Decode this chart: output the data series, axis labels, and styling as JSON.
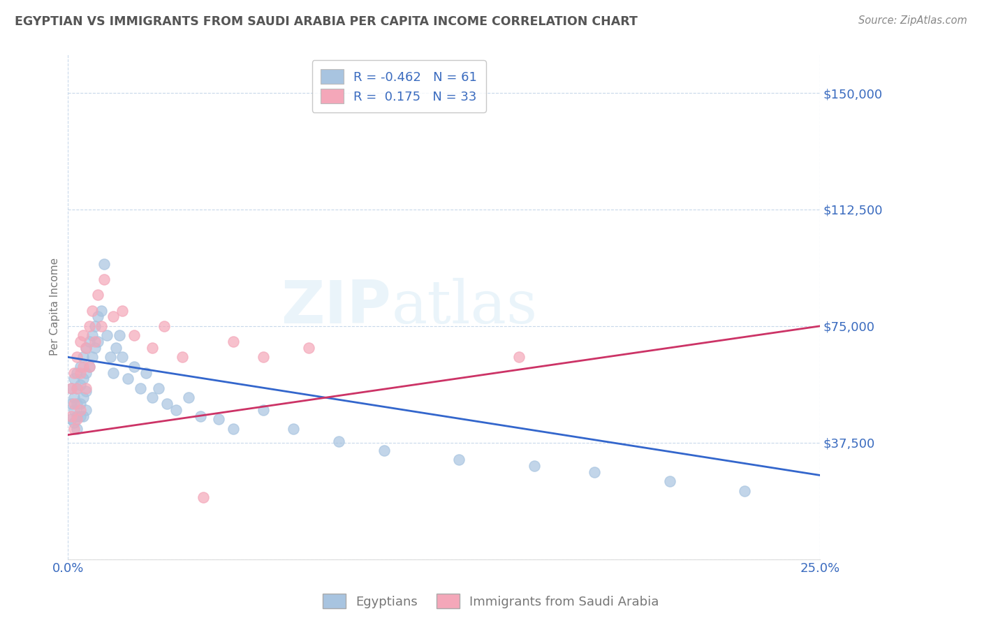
{
  "title": "EGYPTIAN VS IMMIGRANTS FROM SAUDI ARABIA PER CAPITA INCOME CORRELATION CHART",
  "source": "Source: ZipAtlas.com",
  "ylabel": "Per Capita Income",
  "xlim": [
    0.0,
    0.25
  ],
  "ylim": [
    0,
    162500
  ],
  "yticks": [
    0,
    37500,
    75000,
    112500,
    150000
  ],
  "ytick_labels": [
    "",
    "$37,500",
    "$75,000",
    "$112,500",
    "$150,000"
  ],
  "xticks": [
    0.0,
    0.25
  ],
  "xtick_labels": [
    "0.0%",
    "25.0%"
  ],
  "legend_labels": [
    "Egyptians",
    "Immigrants from Saudi Arabia"
  ],
  "series1": {
    "label": "Egyptians",
    "color": "#a8c4e0",
    "R": -0.462,
    "N": 61,
    "line_color": "#3366cc",
    "x": [
      0.001,
      0.001,
      0.001,
      0.002,
      0.002,
      0.002,
      0.002,
      0.003,
      0.003,
      0.003,
      0.003,
      0.003,
      0.004,
      0.004,
      0.004,
      0.004,
      0.005,
      0.005,
      0.005,
      0.005,
      0.006,
      0.006,
      0.006,
      0.006,
      0.007,
      0.007,
      0.008,
      0.008,
      0.009,
      0.009,
      0.01,
      0.01,
      0.011,
      0.012,
      0.013,
      0.014,
      0.015,
      0.016,
      0.017,
      0.018,
      0.02,
      0.022,
      0.024,
      0.026,
      0.028,
      0.03,
      0.033,
      0.036,
      0.04,
      0.044,
      0.05,
      0.055,
      0.065,
      0.075,
      0.09,
      0.105,
      0.13,
      0.155,
      0.175,
      0.2,
      0.225
    ],
    "y": [
      55000,
      50000,
      45000,
      58000,
      52000,
      48000,
      44000,
      60000,
      55000,
      50000,
      46000,
      42000,
      62000,
      56000,
      50000,
      46000,
      65000,
      58000,
      52000,
      46000,
      68000,
      60000,
      54000,
      48000,
      70000,
      62000,
      72000,
      65000,
      75000,
      68000,
      78000,
      70000,
      80000,
      95000,
      72000,
      65000,
      60000,
      68000,
      72000,
      65000,
      58000,
      62000,
      55000,
      60000,
      52000,
      55000,
      50000,
      48000,
      52000,
      46000,
      45000,
      42000,
      48000,
      42000,
      38000,
      35000,
      32000,
      30000,
      28000,
      25000,
      22000
    ]
  },
  "series2": {
    "label": "Immigrants from Saudi Arabia",
    "color": "#f4a7b9",
    "R": 0.175,
    "N": 33,
    "line_color": "#cc3366",
    "x": [
      0.001,
      0.001,
      0.002,
      0.002,
      0.002,
      0.003,
      0.003,
      0.003,
      0.004,
      0.004,
      0.004,
      0.005,
      0.005,
      0.006,
      0.006,
      0.007,
      0.007,
      0.008,
      0.009,
      0.01,
      0.011,
      0.012,
      0.015,
      0.018,
      0.022,
      0.028,
      0.032,
      0.038,
      0.045,
      0.055,
      0.065,
      0.08,
      0.15
    ],
    "y": [
      55000,
      46000,
      60000,
      50000,
      42000,
      65000,
      55000,
      45000,
      70000,
      60000,
      48000,
      72000,
      62000,
      68000,
      55000,
      75000,
      62000,
      80000,
      70000,
      85000,
      75000,
      90000,
      78000,
      80000,
      72000,
      68000,
      75000,
      65000,
      20000,
      70000,
      65000,
      68000,
      65000
    ]
  },
  "background_color": "#ffffff",
  "grid_color": "#c8d8ea",
  "title_color": "#555555",
  "axis_label_color": "#777777",
  "tick_color": "#3a6bbf",
  "legend_R_color": "#3a6bbf"
}
